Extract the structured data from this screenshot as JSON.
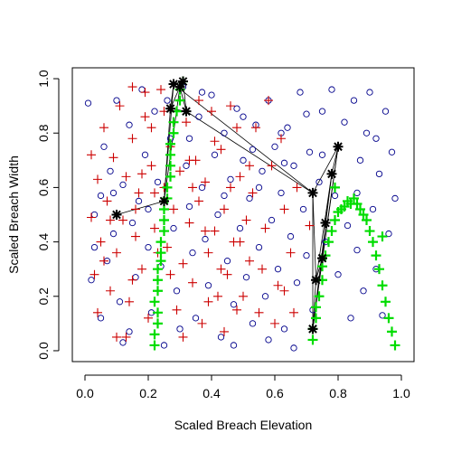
{
  "chart_data": {
    "type": "scatter",
    "title": "",
    "xlabel": "Scaled Breach Elevation",
    "ylabel": "Scaled Breach Width",
    "xlim": [
      -0.04,
      1.04
    ],
    "ylim": [
      -0.04,
      1.04
    ],
    "xticks": [
      "0.0",
      "0.2",
      "0.4",
      "0.6",
      "0.8",
      "1.0"
    ],
    "yticks": [
      "0.0",
      "0.2",
      "0.4",
      "0.6",
      "0.8",
      "1.0"
    ],
    "grid": false,
    "legend": "none",
    "series": [
      {
        "marker": "circle-open",
        "color": "#00008B",
        "points": [
          [
            0.01,
            0.91
          ],
          [
            0.03,
            0.5
          ],
          [
            0.05,
            0.57
          ],
          [
            0.03,
            0.38
          ],
          [
            0.02,
            0.26
          ],
          [
            0.06,
            0.75
          ],
          [
            0.05,
            0.12
          ],
          [
            0.08,
            0.66
          ],
          [
            0.07,
            0.33
          ],
          [
            0.09,
            0.43
          ],
          [
            0.1,
            0.92
          ],
          [
            0.11,
            0.18
          ],
          [
            0.12,
            0.61
          ],
          [
            0.14,
            0.83
          ],
          [
            0.15,
            0.47
          ],
          [
            0.16,
            0.27
          ],
          [
            0.14,
            0.07
          ],
          [
            0.18,
            0.96
          ],
          [
            0.19,
            0.72
          ],
          [
            0.17,
            0.55
          ],
          [
            0.2,
            0.38
          ],
          [
            0.21,
            0.14
          ],
          [
            0.22,
            0.88
          ],
          [
            0.23,
            0.62
          ],
          [
            0.24,
            0.31
          ],
          [
            0.25,
            0.02
          ],
          [
            0.27,
            0.78
          ],
          [
            0.28,
            0.45
          ],
          [
            0.29,
            0.22
          ],
          [
            0.31,
            0.97
          ],
          [
            0.32,
            0.68
          ],
          [
            0.33,
            0.53
          ],
          [
            0.34,
            0.36
          ],
          [
            0.35,
            0.12
          ],
          [
            0.36,
            0.86
          ],
          [
            0.37,
            0.6
          ],
          [
            0.38,
            0.41
          ],
          [
            0.39,
            0.24
          ],
          [
            0.4,
            0.94
          ],
          [
            0.41,
            0.72
          ],
          [
            0.42,
            0.5
          ],
          [
            0.43,
            0.05
          ],
          [
            0.44,
            0.8
          ],
          [
            0.45,
            0.33
          ],
          [
            0.46,
            0.63
          ],
          [
            0.47,
            0.17
          ],
          [
            0.48,
            0.89
          ],
          [
            0.49,
            0.45
          ],
          [
            0.5,
            0.7
          ],
          [
            0.51,
            0.27
          ],
          [
            0.52,
            0.56
          ],
          [
            0.53,
            0.1
          ],
          [
            0.54,
            0.83
          ],
          [
            0.55,
            0.38
          ],
          [
            0.56,
            0.66
          ],
          [
            0.57,
            0.2
          ],
          [
            0.58,
            0.92
          ],
          [
            0.59,
            0.48
          ],
          [
            0.6,
            0.75
          ],
          [
            0.61,
            0.3
          ],
          [
            0.62,
            0.58
          ],
          [
            0.63,
            0.08
          ],
          [
            0.64,
            0.82
          ],
          [
            0.65,
            0.42
          ],
          [
            0.66,
            0.68
          ],
          [
            0.67,
            0.25
          ],
          [
            0.68,
            0.95
          ],
          [
            0.69,
            0.52
          ],
          [
            0.7,
            0.35
          ],
          [
            0.71,
            0.73
          ],
          [
            0.72,
            0.15
          ],
          [
            0.74,
            0.62
          ],
          [
            0.75,
            0.88
          ],
          [
            0.76,
            0.4
          ],
          [
            0.78,
            0.96
          ],
          [
            0.79,
            0.57
          ],
          [
            0.8,
            0.28
          ],
          [
            0.82,
            0.84
          ],
          [
            0.83,
            0.46
          ],
          [
            0.84,
            0.12
          ],
          [
            0.85,
            0.92
          ],
          [
            0.86,
            0.37
          ],
          [
            0.87,
            0.7
          ],
          [
            0.88,
            0.22
          ],
          [
            0.89,
            0.8
          ],
          [
            0.9,
            0.95
          ],
          [
            0.91,
            0.52
          ],
          [
            0.92,
            0.3
          ],
          [
            0.93,
            0.65
          ],
          [
            0.94,
            0.13
          ],
          [
            0.95,
            0.88
          ],
          [
            0.96,
            0.43
          ],
          [
            0.97,
            0.73
          ],
          [
            0.98,
            0.56
          ],
          [
            0.12,
            0.03
          ],
          [
            0.3,
            0.08
          ],
          [
            0.47,
            0.02
          ],
          [
            0.58,
            0.04
          ],
          [
            0.66,
            0.01
          ],
          [
            0.26,
            0.92
          ],
          [
            0.33,
            0.78
          ],
          [
            0.37,
            0.95
          ],
          [
            0.5,
            0.86
          ],
          [
            0.53,
            0.74
          ],
          [
            0.62,
            0.8
          ],
          [
            0.7,
            0.87
          ],
          [
            0.2,
            0.52
          ],
          [
            0.09,
            0.58
          ],
          [
            0.44,
            0.57
          ],
          [
            0.55,
            0.6
          ],
          [
            0.63,
            0.69
          ],
          [
            0.75,
            0.72
          ],
          [
            0.86,
            0.58
          ],
          [
            0.92,
            0.78
          ]
        ]
      },
      {
        "marker": "plus",
        "color": "#CC0000",
        "points": [
          [
            0.02,
            0.49
          ],
          [
            0.04,
            0.63
          ],
          [
            0.03,
            0.28
          ],
          [
            0.06,
            0.82
          ],
          [
            0.05,
            0.4
          ],
          [
            0.07,
            0.55
          ],
          [
            0.08,
            0.22
          ],
          [
            0.09,
            0.71
          ],
          [
            0.1,
            0.36
          ],
          [
            0.11,
            0.9
          ],
          [
            0.1,
            0.05
          ],
          [
            0.12,
            0.48
          ],
          [
            0.13,
            0.64
          ],
          [
            0.14,
            0.18
          ],
          [
            0.15,
            0.78
          ],
          [
            0.16,
            0.42
          ],
          [
            0.17,
            0.58
          ],
          [
            0.18,
            0.3
          ],
          [
            0.19,
            0.86
          ],
          [
            0.2,
            0.12
          ],
          [
            0.21,
            0.68
          ],
          [
            0.22,
            0.45
          ],
          [
            0.23,
            0.22
          ],
          [
            0.24,
            0.96
          ],
          [
            0.25,
            0.6
          ],
          [
            0.26,
            0.38
          ],
          [
            0.27,
            0.75
          ],
          [
            0.28,
            0.52
          ],
          [
            0.29,
            0.15
          ],
          [
            0.3,
            0.66
          ],
          [
            0.31,
            0.32
          ],
          [
            0.32,
            0.84
          ],
          [
            0.33,
            0.47
          ],
          [
            0.34,
            0.25
          ],
          [
            0.35,
            0.7
          ],
          [
            0.36,
            0.55
          ],
          [
            0.37,
            0.1
          ],
          [
            0.38,
            0.62
          ],
          [
            0.39,
            0.36
          ],
          [
            0.4,
            0.88
          ],
          [
            0.41,
            0.44
          ],
          [
            0.42,
            0.2
          ],
          [
            0.43,
            0.74
          ],
          [
            0.44,
            0.52
          ],
          [
            0.45,
            0.28
          ],
          [
            0.46,
            0.9
          ],
          [
            0.47,
            0.4
          ],
          [
            0.48,
            0.15
          ],
          [
            0.49,
            0.64
          ],
          [
            0.5,
            0.2
          ],
          [
            0.51,
            0.48
          ],
          [
            0.52,
            0.33
          ],
          [
            0.53,
            0.58
          ],
          [
            0.55,
            0.14
          ],
          [
            0.57,
            0.45
          ],
          [
            0.59,
            0.68
          ],
          [
            0.61,
            0.24
          ],
          [
            0.63,
            0.52
          ],
          [
            0.65,
            0.36
          ],
          [
            0.67,
            0.6
          ],
          [
            0.15,
            0.97
          ],
          [
            0.19,
            0.95
          ],
          [
            0.25,
            0.88
          ],
          [
            0.02,
            0.72
          ],
          [
            0.04,
            0.14
          ],
          [
            0.06,
            0.33
          ],
          [
            0.08,
            0.48
          ],
          [
            0.13,
            0.05
          ],
          [
            0.15,
            0.26
          ],
          [
            0.18,
            0.65
          ],
          [
            0.21,
            0.82
          ],
          [
            0.23,
            0.36
          ],
          [
            0.31,
            0.05
          ],
          [
            0.34,
            0.6
          ],
          [
            0.36,
            0.92
          ],
          [
            0.39,
            0.18
          ],
          [
            0.41,
            0.77
          ],
          [
            0.44,
            0.07
          ],
          [
            0.46,
            0.6
          ],
          [
            0.49,
            0.4
          ],
          [
            0.54,
            0.82
          ],
          [
            0.58,
            0.92
          ],
          [
            0.6,
            0.1
          ],
          [
            0.62,
            0.78
          ],
          [
            0.66,
            0.14
          ],
          [
            0.71,
            0.46
          ],
          [
            0.16,
            0.52
          ],
          [
            0.22,
            0.58
          ],
          [
            0.27,
            0.28
          ],
          [
            0.33,
            0.7
          ],
          [
            0.38,
            0.44
          ],
          [
            0.43,
            0.3
          ],
          [
            0.48,
            0.82
          ],
          [
            0.52,
            0.68
          ],
          [
            0.56,
            0.3
          ],
          [
            0.63,
            0.22
          ]
        ]
      },
      {
        "marker": "plus",
        "color": "#00DD00",
        "points": [
          [
            0.22,
            0.02
          ],
          [
            0.22,
            0.06
          ],
          [
            0.23,
            0.1
          ],
          [
            0.23,
            0.14
          ],
          [
            0.22,
            0.18
          ],
          [
            0.23,
            0.22
          ],
          [
            0.23,
            0.26
          ],
          [
            0.23,
            0.3
          ],
          [
            0.24,
            0.33
          ],
          [
            0.24,
            0.36
          ],
          [
            0.24,
            0.4
          ],
          [
            0.25,
            0.44
          ],
          [
            0.25,
            0.48
          ],
          [
            0.25,
            0.52
          ],
          [
            0.26,
            0.56
          ],
          [
            0.26,
            0.6
          ],
          [
            0.27,
            0.64
          ],
          [
            0.27,
            0.68
          ],
          [
            0.27,
            0.72
          ],
          [
            0.27,
            0.76
          ],
          [
            0.28,
            0.8
          ],
          [
            0.28,
            0.84
          ],
          [
            0.29,
            0.88
          ],
          [
            0.3,
            0.92
          ],
          [
            0.3,
            0.96
          ],
          [
            0.31,
            0.99
          ],
          [
            0.72,
            0.04
          ],
          [
            0.72,
            0.08
          ],
          [
            0.73,
            0.12
          ],
          [
            0.73,
            0.16
          ],
          [
            0.74,
            0.2
          ],
          [
            0.75,
            0.26
          ],
          [
            0.75,
            0.31
          ],
          [
            0.76,
            0.35
          ],
          [
            0.77,
            0.4
          ],
          [
            0.78,
            0.44
          ],
          [
            0.79,
            0.48
          ],
          [
            0.8,
            0.51
          ],
          [
            0.82,
            0.53
          ],
          [
            0.84,
            0.54
          ],
          [
            0.86,
            0.54
          ],
          [
            0.87,
            0.52
          ],
          [
            0.89,
            0.48
          ],
          [
            0.9,
            0.44
          ],
          [
            0.91,
            0.4
          ],
          [
            0.92,
            0.35
          ],
          [
            0.93,
            0.3
          ],
          [
            0.94,
            0.24
          ],
          [
            0.95,
            0.18
          ],
          [
            0.96,
            0.12
          ],
          [
            0.97,
            0.07
          ],
          [
            0.98,
            0.02
          ],
          [
            0.81,
            0.52
          ],
          [
            0.83,
            0.55
          ],
          [
            0.85,
            0.56
          ],
          [
            0.88,
            0.5
          ],
          [
            0.94,
            0.42
          ],
          [
            0.79,
            0.6
          ]
        ]
      },
      {
        "marker": "star",
        "color": "#000000",
        "points": [
          [
            0.1,
            0.5
          ],
          [
            0.25,
            0.55
          ],
          [
            0.27,
            0.89
          ],
          [
            0.28,
            0.98
          ],
          [
            0.3,
            0.97
          ],
          [
            0.31,
            0.99
          ],
          [
            0.32,
            0.88
          ],
          [
            0.72,
            0.58
          ],
          [
            0.73,
            0.26
          ],
          [
            0.72,
            0.08
          ],
          [
            0.75,
            0.34
          ],
          [
            0.76,
            0.47
          ],
          [
            0.78,
            0.65
          ],
          [
            0.8,
            0.75
          ]
        ]
      }
    ]
  }
}
